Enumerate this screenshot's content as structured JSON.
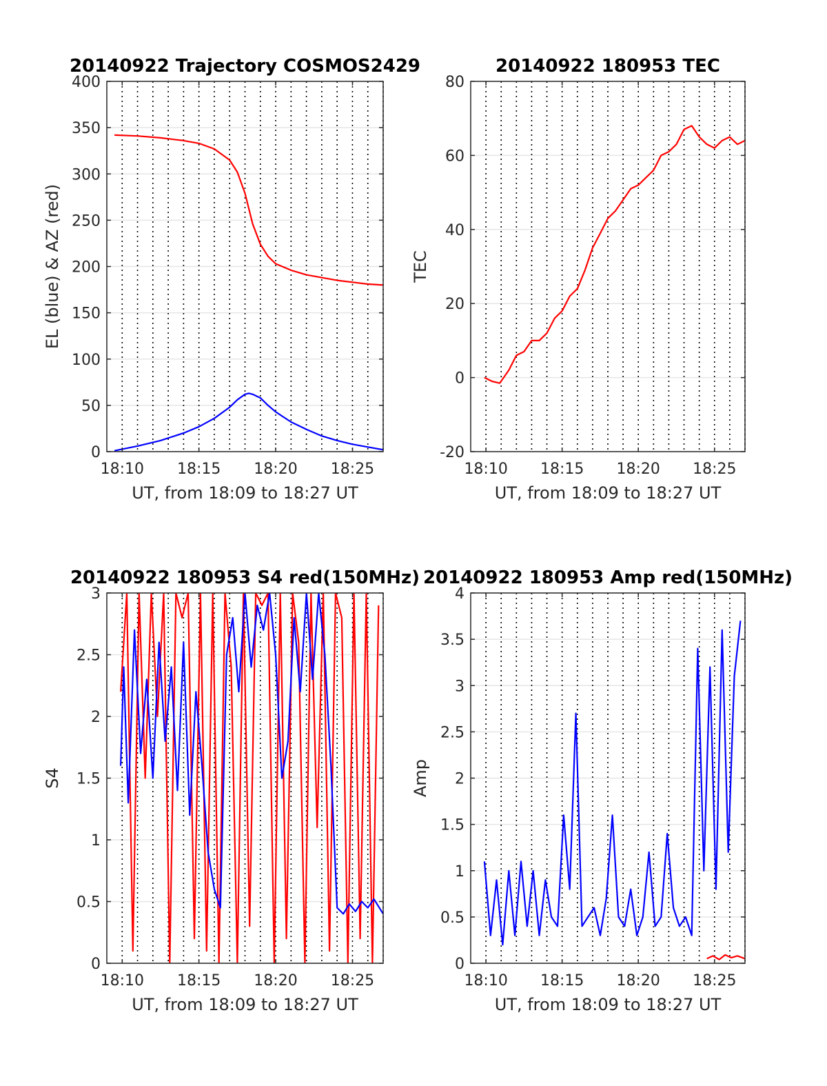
{
  "chart_data": [
    {
      "type": "line",
      "title": "20140922 Trajectory COSMOS2429",
      "xlabel": "UT, from 18:09 to 18:27 UT",
      "ylabel": "EL (blue) & AZ (red)",
      "xlim": [
        18.15,
        18.45
      ],
      "ylim": [
        0,
        400
      ],
      "xticks": [
        18.1667,
        18.25,
        18.3333,
        18.4167
      ],
      "xtick_labels": [
        "18:10",
        "18:15",
        "18:20",
        "18:25"
      ],
      "yticks": [
        0,
        50,
        100,
        150,
        200,
        250,
        300,
        350,
        400
      ],
      "ytick_labels": [
        "0",
        "50",
        "100",
        "150",
        "200",
        "250",
        "300",
        "350",
        "400"
      ],
      "grid": "vertical dotted every minute, horizontal light",
      "series": [
        {
          "color": "#ff0000",
          "x": [
            18.1583,
            18.1833,
            18.2083,
            18.2333,
            18.25,
            18.2667,
            18.2833,
            18.2917,
            18.3,
            18.3083,
            18.3167,
            18.325,
            18.3333,
            18.35,
            18.3667,
            18.3833,
            18.4,
            18.4167,
            18.4333,
            18.45
          ],
          "y": [
            342,
            341,
            339,
            336,
            333,
            327,
            315,
            302,
            279,
            246,
            224,
            211,
            203,
            196,
            191,
            188,
            185,
            183,
            181,
            180
          ]
        },
        {
          "color": "#0000ff",
          "x": [
            18.1583,
            18.1833,
            18.2083,
            18.2333,
            18.25,
            18.2667,
            18.2833,
            18.2917,
            18.3,
            18.3042,
            18.3083,
            18.3167,
            18.325,
            18.3333,
            18.35,
            18.3667,
            18.3833,
            18.4,
            18.4167,
            18.4333,
            18.45
          ],
          "y": [
            1,
            6,
            12,
            20,
            27,
            36,
            48,
            56,
            62,
            63,
            62,
            58,
            50,
            43,
            32,
            24,
            17,
            12,
            8,
            5,
            2
          ]
        }
      ]
    },
    {
      "type": "line",
      "title": "20140922 180953 TEC",
      "xlabel": "UT, from 18:09 to 18:27 UT",
      "ylabel": "TEC",
      "xlim": [
        18.15,
        18.45
      ],
      "ylim": [
        -20,
        80
      ],
      "xticks": [
        18.1667,
        18.25,
        18.3333,
        18.4167
      ],
      "xtick_labels": [
        "18:10",
        "18:15",
        "18:20",
        "18:25"
      ],
      "yticks": [
        -20,
        0,
        20,
        40,
        60,
        80
      ],
      "ytick_labels": [
        "-20",
        "0",
        "20",
        "40",
        "60",
        "80"
      ],
      "grid": "vertical dotted every minute, horizontal light",
      "series": [
        {
          "color": "#ff0000",
          "x": [
            18.165,
            18.1733,
            18.1817,
            18.1917,
            18.2,
            18.2083,
            18.2167,
            18.225,
            18.2333,
            18.2417,
            18.25,
            18.2583,
            18.2667,
            18.275,
            18.2833,
            18.2917,
            18.3,
            18.3083,
            18.3167,
            18.325,
            18.3333,
            18.3417,
            18.35,
            18.3583,
            18.3667,
            18.375,
            18.3833,
            18.3917,
            18.4,
            18.4083,
            18.4167,
            18.425,
            18.4333,
            18.4417,
            18.45
          ],
          "y": [
            0,
            -1,
            -1.5,
            2,
            6,
            7,
            10,
            10,
            12,
            16,
            18,
            22,
            24,
            29,
            35,
            39,
            43,
            45,
            48,
            51,
            52,
            54,
            56,
            60,
            61,
            63,
            67,
            68,
            65,
            63,
            62,
            64,
            65,
            63,
            64
          ]
        }
      ]
    },
    {
      "type": "line",
      "title": "20140922 180953 S4 red(150MHz)",
      "xlabel": "UT, from 18:09 to 18:27 UT",
      "ylabel": "S4",
      "xlim": [
        18.15,
        18.45
      ],
      "ylim": [
        0,
        3
      ],
      "xticks": [
        18.1667,
        18.25,
        18.3333,
        18.4167
      ],
      "xtick_labels": [
        "18:10",
        "18:15",
        "18:20",
        "18:25"
      ],
      "yticks": [
        0,
        0.5,
        1,
        1.5,
        2,
        2.5,
        3
      ],
      "ytick_labels": [
        "0",
        "0.5",
        "1",
        "1.5",
        "2",
        "2.5",
        "3"
      ],
      "grid": "vertical dotted every minute, horizontal light",
      "series": [
        {
          "color": "#ff0000",
          "x": [
            18.165,
            18.1717,
            18.1783,
            18.185,
            18.1917,
            18.1983,
            18.205,
            18.2117,
            18.2183,
            18.225,
            18.2317,
            18.2383,
            18.245,
            18.2517,
            18.2583,
            18.265,
            18.2717,
            18.2783,
            18.285,
            18.2917,
            18.2983,
            18.305,
            18.3117,
            18.3183,
            18.325,
            18.3317,
            18.3383,
            18.345,
            18.3517,
            18.3583,
            18.365,
            18.3717,
            18.3783,
            18.385,
            18.3917,
            18.3983,
            18.405,
            18.4117,
            18.4183,
            18.425,
            18.4317,
            18.4383,
            18.445
          ],
          "y": [
            2.2,
            3,
            0.1,
            3,
            1.5,
            3,
            2,
            3,
            0,
            3,
            2.8,
            3,
            0.2,
            3,
            0.1,
            3,
            0,
            3,
            2.4,
            0,
            3,
            0.3,
            3,
            2.9,
            3,
            0,
            3,
            0.2,
            3,
            2.6,
            0,
            3,
            1.1,
            3,
            0.1,
            3,
            2.8,
            0,
            3,
            0.2,
            3,
            0,
            2.9
          ]
        },
        {
          "color": "#0000ff",
          "x": [
            18.165,
            18.1683,
            18.1733,
            18.18,
            18.1867,
            18.1933,
            18.2,
            18.2067,
            18.2133,
            18.22,
            18.2267,
            18.2333,
            18.24,
            18.2467,
            18.2533,
            18.26,
            18.2667,
            18.2733,
            18.28,
            18.2867,
            18.2933,
            18.3,
            18.3067,
            18.3133,
            18.32,
            18.3267,
            18.3333,
            18.34,
            18.3467,
            18.3533,
            18.36,
            18.3667,
            18.3733,
            18.38,
            18.3867,
            18.3933,
            18.4,
            18.4067,
            18.4133,
            18.42,
            18.4267,
            18.4333,
            18.44,
            18.45
          ],
          "y": [
            1.6,
            2.4,
            1.3,
            2.7,
            1.7,
            2.3,
            1.5,
            2.6,
            1.8,
            2.4,
            1.4,
            2.6,
            1.2,
            2.2,
            1.6,
            0.9,
            0.6,
            0.45,
            2.5,
            2.8,
            2.2,
            3,
            2.4,
            2.9,
            2.7,
            3,
            2.5,
            1.5,
            1.8,
            2.8,
            2.2,
            3,
            2.3,
            3,
            2.5,
            1.6,
            0.45,
            0.4,
            0.48,
            0.42,
            0.5,
            0.45,
            0.52,
            0.4
          ]
        }
      ]
    },
    {
      "type": "line",
      "title": "20140922 180953 Amp red(150MHz)",
      "xlabel": "UT, from 18:09 to 18:27 UT",
      "ylabel": "Amp",
      "xlim": [
        18.15,
        18.45
      ],
      "ylim": [
        0,
        4
      ],
      "xticks": [
        18.1667,
        18.25,
        18.3333,
        18.4167
      ],
      "xtick_labels": [
        "18:10",
        "18:15",
        "18:20",
        "18:25"
      ],
      "yticks": [
        0,
        0.5,
        1,
        1.5,
        2,
        2.5,
        3,
        3.5,
        4
      ],
      "ytick_labels": [
        "0",
        "0.5",
        "1",
        "1.5",
        "2",
        "2.5",
        "3",
        "3.5",
        "4"
      ],
      "grid": "vertical dotted every minute, horizontal light",
      "series": [
        {
          "color": "#ff0000",
          "x": [
            18.4083,
            18.415,
            18.4217,
            18.4283,
            18.435,
            18.4417,
            18.45
          ],
          "y": [
            0.05,
            0.08,
            0.04,
            0.09,
            0.06,
            0.08,
            0.05
          ]
        },
        {
          "color": "#0000ff",
          "x": [
            18.165,
            18.1717,
            18.1783,
            18.185,
            18.1917,
            18.1983,
            18.205,
            18.2117,
            18.2183,
            18.225,
            18.2317,
            18.2383,
            18.245,
            18.2517,
            18.2583,
            18.265,
            18.2717,
            18.2783,
            18.285,
            18.2917,
            18.2983,
            18.305,
            18.3117,
            18.3183,
            18.325,
            18.3317,
            18.3383,
            18.345,
            18.3517,
            18.3583,
            18.365,
            18.3717,
            18.3783,
            18.385,
            18.3917,
            18.3983,
            18.405,
            18.4117,
            18.4183,
            18.425,
            18.4317,
            18.4383,
            18.445
          ],
          "y": [
            1.1,
            0.3,
            0.9,
            0.2,
            1.0,
            0.3,
            1.1,
            0.4,
            1.0,
            0.3,
            0.9,
            0.5,
            0.4,
            1.6,
            0.8,
            2.7,
            0.4,
            0.5,
            0.6,
            0.3,
            0.7,
            1.6,
            0.5,
            0.4,
            0.8,
            0.3,
            0.5,
            1.2,
            0.4,
            0.5,
            1.4,
            0.6,
            0.4,
            0.5,
            0.3,
            3.4,
            1.0,
            3.2,
            0.8,
            3.6,
            1.2,
            3.1,
            3.7
          ]
        }
      ]
    }
  ]
}
